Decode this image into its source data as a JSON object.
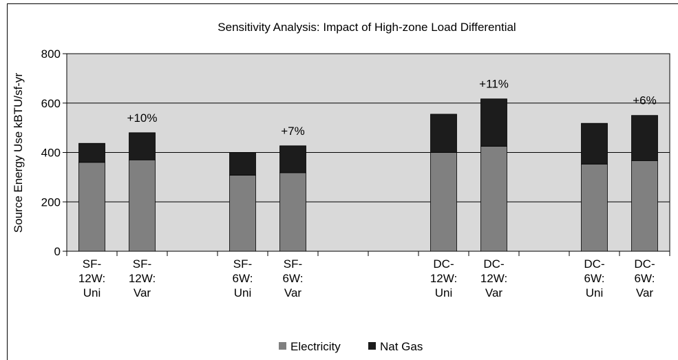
{
  "chart_data": {
    "type": "bar",
    "stacked": true,
    "title": "Sensitivity Analysis: Impact of High-zone Load Differential",
    "y_label": "Source Energy Use kBTU/sf-yr",
    "categories": [
      "SF-\n12W:\nUni",
      "SF-\n12W:\nVar",
      null,
      "SF-\n6W:\nUni",
      "SF-\n6W:\nVar",
      null,
      null,
      "DC-\n12W:\nUni",
      "DC-\n12W:\nVar",
      null,
      "DC-\n6W:\nUni",
      "DC-\n6W:\nVar"
    ],
    "series": [
      {
        "name": "Electricity",
        "color": "#808080",
        "values": [
          360,
          370,
          null,
          308,
          318,
          null,
          null,
          400,
          425,
          null,
          353,
          367
        ]
      },
      {
        "name": "Nat Gas",
        "color": "#1c1c1c",
        "values": [
          77,
          110,
          null,
          92,
          109,
          null,
          null,
          155,
          192,
          null,
          165,
          183
        ]
      }
    ],
    "annotations": [
      {
        "text": "+10%",
        "index": 1
      },
      {
        "text": "+7%",
        "index": 4
      },
      {
        "text": "+11%",
        "index": 8
      },
      {
        "text": "+6%",
        "index": 11
      }
    ],
    "ylim": [
      0,
      800
    ],
    "yticks": [
      0,
      200,
      400,
      600,
      800
    ],
    "grid": true,
    "legend": "bottom",
    "plot_background": "#d9d9d9"
  }
}
